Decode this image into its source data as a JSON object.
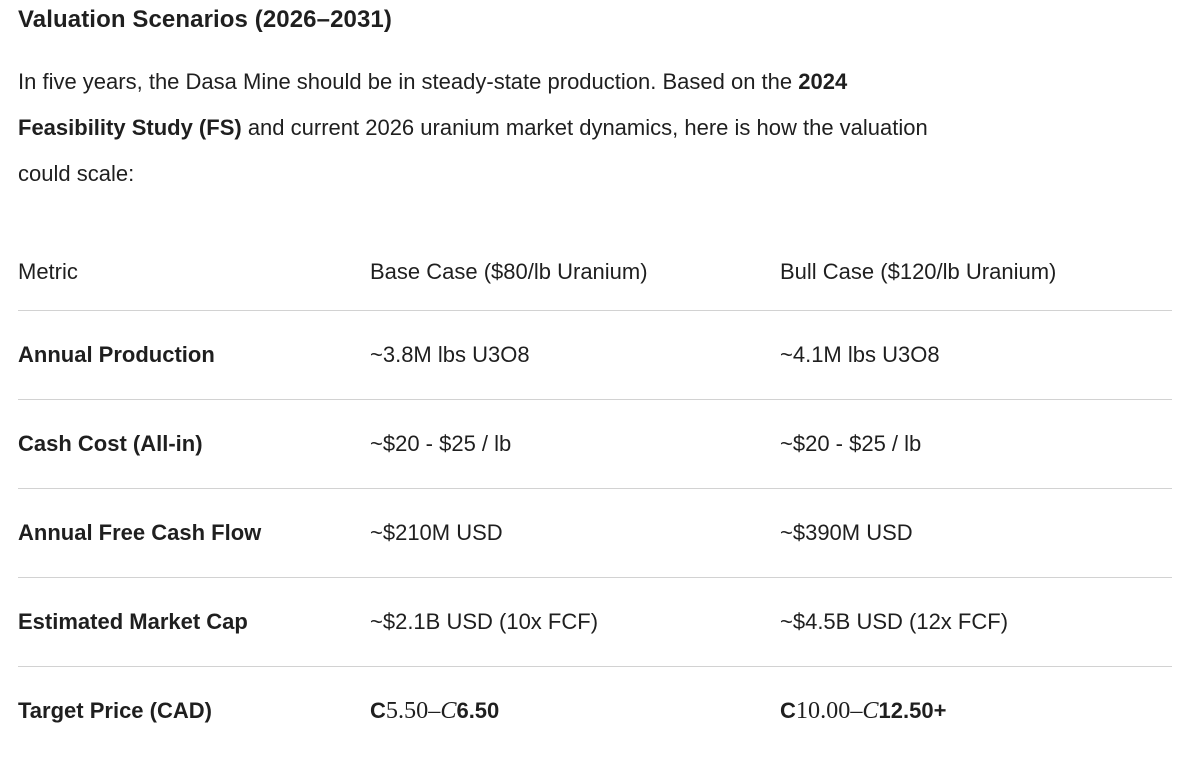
{
  "page": {
    "title": "Valuation Scenarios (2026–2031)"
  },
  "paragraph": {
    "lines": [
      [
        {
          "t": "In five years, the Dasa Mine should be in steady-state production. Based on the ",
          "s": "n"
        },
        {
          "t": "2024",
          "s": "b"
        }
      ],
      [
        {
          "t": "Feasibility Study (FS)",
          "s": "b"
        },
        {
          "t": " and current 2026 uranium market dynamics, here is how the valuation",
          "s": "n"
        }
      ],
      [
        {
          "t": "could scale:",
          "s": "n"
        }
      ]
    ]
  },
  "table": {
    "headers": [
      "Metric",
      "Base Case ($80/lb Uranium)",
      "Bull Case ($120/lb Uranium)"
    ],
    "rows": [
      {
        "metric": "Annual Production",
        "base": [
          {
            "t": "~3.8M lbs U3O8",
            "s": "n"
          }
        ],
        "bull": [
          {
            "t": "~4.1M lbs U3O8",
            "s": "n"
          }
        ]
      },
      {
        "metric": "Cash Cost (All-in)",
        "base": [
          {
            "t": "~$20 - $25 / lb",
            "s": "n"
          }
        ],
        "bull": [
          {
            "t": "~$20 - $25 / lb",
            "s": "n"
          }
        ]
      },
      {
        "metric": "Annual Free Cash Flow",
        "base": [
          {
            "t": "~$210M USD",
            "s": "n"
          }
        ],
        "bull": [
          {
            "t": "~$390M USD",
            "s": "n"
          }
        ]
      },
      {
        "metric": "Estimated Market Cap",
        "base": [
          {
            "t": "~$2.1B USD (10x FCF)",
            "s": "n"
          }
        ],
        "bull": [
          {
            "t": "~$4.5B USD (12x FCF)",
            "s": "n"
          }
        ]
      },
      {
        "metric": "Target Price (CAD)",
        "base": [
          {
            "t": "C",
            "s": "b"
          },
          {
            "t": "5.50–",
            "s": "m"
          },
          {
            "t": "C",
            "s": "mi"
          },
          {
            "t": "6.50",
            "s": "b"
          }
        ],
        "bull": [
          {
            "t": "C",
            "s": "b"
          },
          {
            "t": "10.00–",
            "s": "m"
          },
          {
            "t": "C",
            "s": "mi"
          },
          {
            "t": "12.50+",
            "s": "b"
          }
        ]
      }
    ]
  },
  "colors": {
    "text": "#1f1f1f",
    "divider": "#d2d2d2",
    "background": "#ffffff"
  }
}
